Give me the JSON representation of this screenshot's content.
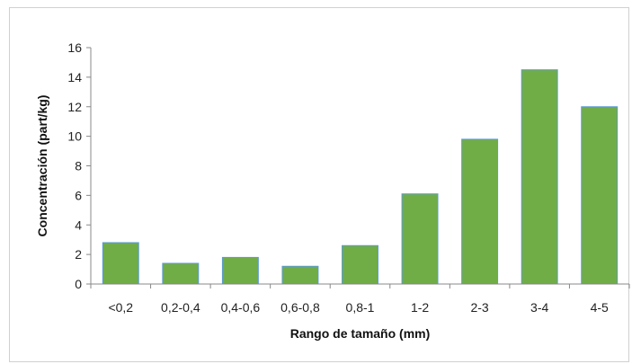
{
  "chart_data": {
    "type": "bar",
    "title": "",
    "xlabel": "Rango de tamaño (mm)",
    "ylabel": "Concentración (part/kg)",
    "categories": [
      "<0,2",
      "0,2-0,4",
      "0,4-0,6",
      "0,6-0,8",
      "0,8-1",
      "1-2",
      "2-3",
      "3-4",
      "4-5"
    ],
    "values": [
      2.8,
      1.4,
      1.8,
      1.2,
      2.6,
      6.1,
      9.8,
      14.5,
      12.0
    ],
    "ylim": [
      0,
      16
    ],
    "yticks": [
      0,
      2,
      4,
      6,
      8,
      10,
      12,
      14,
      16
    ],
    "grid": false,
    "legend": "none",
    "bar_color": "#70ad47",
    "bar_edge_color": "#5b9bd5"
  }
}
